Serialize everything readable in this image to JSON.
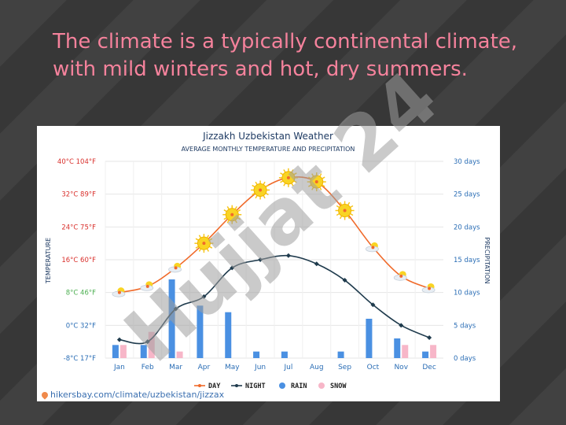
{
  "slide": {
    "title": "The climate is a typically continental climate, with mild winters and hot, dry summers."
  },
  "source_link": "hikersbay.com/climate/uzbekistan/jizzax",
  "watermark_text": "Hujjat 24",
  "colors": {
    "title": "#f5829c",
    "day": "#f06a2a",
    "night": "#1f3b4d",
    "rain": "#4a90e2",
    "snow": "#f7b6c8",
    "left_axis_red": "#d9302c",
    "left_axis_green": "#4caf50",
    "left_axis_blue": "#2a6db5"
  },
  "chart_data": {
    "type": "line",
    "title": "Jizzakh Uzbekistan Weather",
    "subtitle": "AVERAGE MONTHLY TEMPERATURE AND PRECIPITATION",
    "ylabel": "TEMPERATURE",
    "y2label": "PRECIPITATION",
    "categories": [
      "Jan",
      "Feb",
      "Mar",
      "Apr",
      "May",
      "Jun",
      "Jul",
      "Aug",
      "Sep",
      "Oct",
      "Nov",
      "Dec"
    ],
    "ylim": [
      -8,
      40
    ],
    "y2lim": [
      0,
      30
    ],
    "y_ticks": [
      {
        "value": 40,
        "label": "40°C 104°F",
        "color": "#d9302c"
      },
      {
        "value": 32,
        "label": "32°C 89°F",
        "color": "#d9302c"
      },
      {
        "value": 24,
        "label": "24°C 75°F",
        "color": "#d9302c"
      },
      {
        "value": 16,
        "label": "16°C 60°F",
        "color": "#d9302c"
      },
      {
        "value": 8,
        "label": "8°C 46°F",
        "color": "#4caf50"
      },
      {
        "value": 0,
        "label": "0°C 32°F",
        "color": "#2a6db5"
      },
      {
        "value": -8,
        "label": "-8°C 17°F",
        "color": "#2a6db5"
      }
    ],
    "y2_ticks": [
      {
        "value": 30,
        "label": "30 days"
      },
      {
        "value": 25,
        "label": "25 days"
      },
      {
        "value": 20,
        "label": "20 days"
      },
      {
        "value": 15,
        "label": "15 days"
      },
      {
        "value": 10,
        "label": "10 days"
      },
      {
        "value": 5,
        "label": "5 days"
      },
      {
        "value": 0,
        "label": "0 days"
      }
    ],
    "series": [
      {
        "name": "DAY",
        "kind": "line",
        "axis": "temp",
        "values": [
          8,
          9.5,
          14,
          20,
          27,
          33,
          36,
          35,
          28,
          19,
          12,
          9
        ]
      },
      {
        "name": "NIGHT",
        "kind": "line",
        "axis": "temp",
        "values": [
          -3.5,
          -4,
          4,
          7,
          14,
          16,
          17,
          15,
          11,
          5,
          0,
          -3
        ]
      },
      {
        "name": "RAIN",
        "kind": "bar",
        "axis": "precip",
        "values": [
          2,
          2,
          12,
          8,
          7,
          1,
          1,
          0,
          1,
          6,
          3,
          1
        ]
      },
      {
        "name": "SNOW",
        "kind": "bar",
        "axis": "precip",
        "values": [
          2,
          4,
          1,
          0,
          0,
          0,
          0,
          0,
          0,
          0,
          2,
          2
        ]
      }
    ],
    "day_icons": [
      "cloud-sun",
      "cloud-sun",
      "cloud-sun",
      "sun",
      "sun",
      "sun",
      "sun",
      "sun",
      "sun",
      "cloud-sun",
      "cloud-sun",
      "cloud-sun"
    ],
    "legend": {
      "placement": "bottom",
      "items": [
        "DAY",
        "NIGHT",
        "RAIN",
        "SNOW"
      ]
    },
    "grid": true
  }
}
